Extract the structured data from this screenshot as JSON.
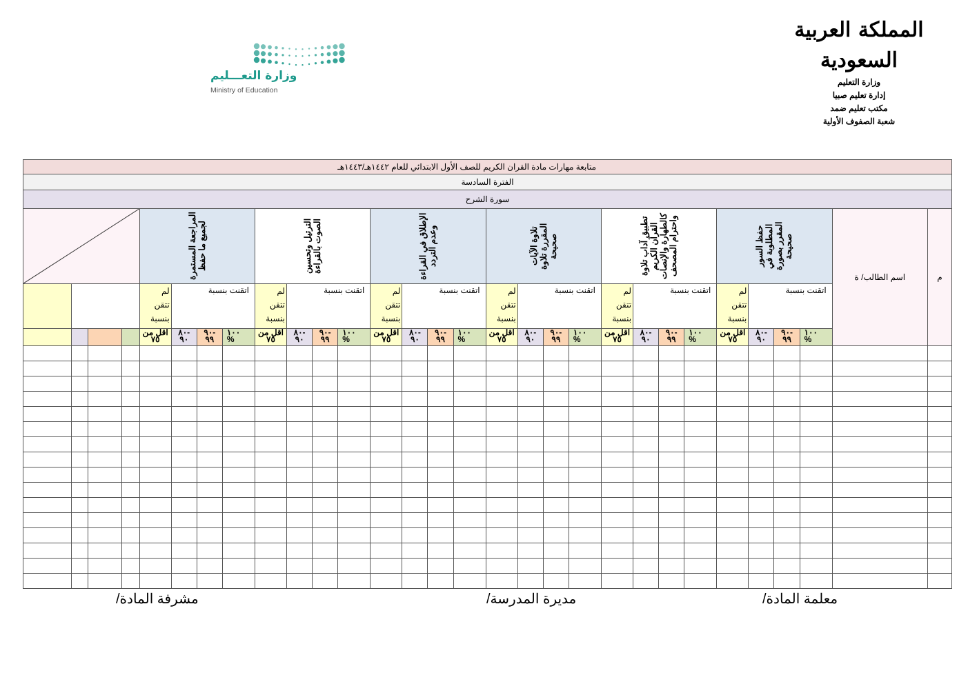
{
  "header": {
    "kingdom_logo_text": "المملكة العربية السعودية",
    "lines": [
      "وزارة التعليم",
      "إدارة تعليم صبيا",
      "مكتب تعليم ضمد",
      "شعبة الصفوف الأولية"
    ],
    "moe_logo": {
      "arabic": "وزارة التعـــليم",
      "english": "Ministry of Education",
      "color": "#1e9a8c"
    }
  },
  "table": {
    "title": "متابعة مهارات مادة القران الكريم للصف الأول الابتدائي   للعام ١٤٤٢هـ/١٤٤٣هـ",
    "period": "الفترة السادسة",
    "surah": "سورة الشرح",
    "col_number": "م",
    "col_name": "اسم الطالب/ ة",
    "skills": [
      {
        "label": "حفظ السور المطلوبة في المقرر بصورة صحيحة",
        "bg": "#dce6f1"
      },
      {
        "label": "تطبيق آداب تلاوة القرآن الكريم كالطهارة والإنصات واحترام المصحف",
        "bg": "#ffffff"
      },
      {
        "label": "تلاوة الآيات المقررة تلاوة صحيحة",
        "bg": "#dce6f1"
      },
      {
        "label": "الإطلاق في القراءة وعدم التردد",
        "bg": "#dce6f1"
      },
      {
        "label": "الترتيل وتحسين الصوت بالقراءة",
        "bg": "#ffffff"
      },
      {
        "label": "المراجعة المستمرة لجميع ما حفظ",
        "bg": "#dce6f1"
      }
    ],
    "mastered_label": "اتقنت بنسبة",
    "not_mastered_label": "لم\nتتقن\nبنسبة",
    "levels": [
      "١٠٠\n%",
      "-٩٠\n٩٩",
      "-٨٠\n٩٠",
      "أقل من\n٧٥"
    ],
    "level_colors": [
      "#d8e4bc",
      "#fcd5b4",
      "#e4dfec",
      "#ffffcc"
    ],
    "data_rows": 16
  },
  "signatures": {
    "teacher": "معلمة المادة/",
    "principal": "مديرة المدرسة/",
    "supervisor": "مشرفة المادة/"
  }
}
